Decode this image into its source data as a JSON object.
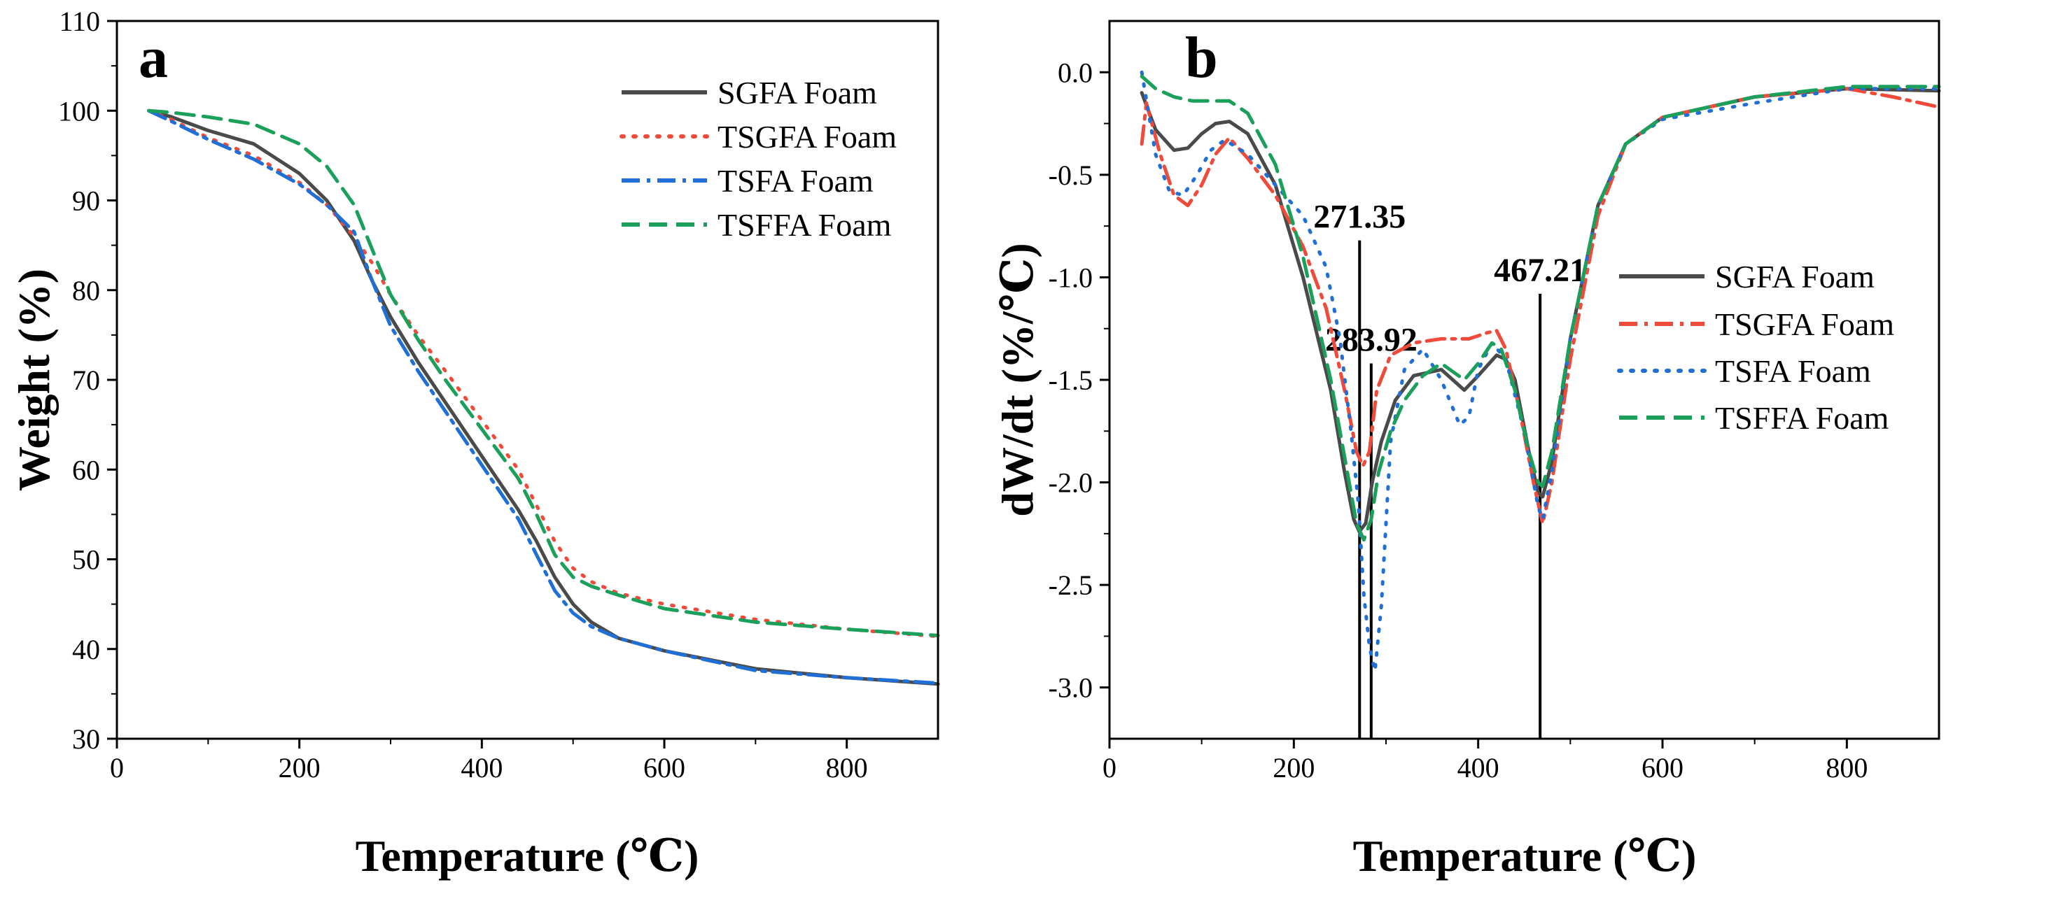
{
  "chart_data": [
    {
      "type": "line",
      "panel_label": "a",
      "title": "",
      "xlabel": "Temperature (℃)",
      "ylabel": "Weight (%)",
      "xlim": [
        0,
        900
      ],
      "ylim": [
        30,
        110
      ],
      "xticks": [
        0,
        200,
        400,
        600,
        800
      ],
      "yticks": [
        30,
        40,
        50,
        60,
        70,
        80,
        90,
        100,
        110
      ],
      "grid": false,
      "legend_position": "top-right",
      "series": [
        {
          "name": "SGFA Foam",
          "color": "#4a4a4a",
          "dash": "solid",
          "x": [
            35,
            60,
            100,
            150,
            200,
            230,
            260,
            280,
            300,
            330,
            360,
            400,
            440,
            460,
            480,
            500,
            520,
            550,
            600,
            700,
            800,
            900
          ],
          "y": [
            100,
            99.3,
            97.8,
            96.3,
            93,
            90,
            85.5,
            81,
            77,
            72,
            67.5,
            61.5,
            55.5,
            52,
            48,
            45,
            43,
            41.2,
            39.8,
            37.8,
            36.8,
            36.1
          ]
        },
        {
          "name": "TSGFA Foam",
          "color": "#f04a3a",
          "dash": "dot",
          "x": [
            35,
            60,
            100,
            150,
            200,
            230,
            260,
            280,
            300,
            330,
            360,
            400,
            440,
            460,
            480,
            500,
            520,
            550,
            600,
            700,
            800,
            900
          ],
          "y": [
            100,
            99,
            97,
            95,
            92,
            89.5,
            86,
            83,
            79.5,
            75,
            71,
            65.5,
            60,
            56,
            52,
            49,
            47.5,
            46.2,
            45,
            43.3,
            42.2,
            41.4
          ]
        },
        {
          "name": "TSFA Foam",
          "color": "#1f6fd6",
          "dash": "dashdot",
          "x": [
            35,
            60,
            100,
            150,
            200,
            230,
            260,
            280,
            300,
            330,
            360,
            400,
            440,
            460,
            480,
            500,
            520,
            550,
            600,
            700,
            800,
            900
          ],
          "y": [
            100,
            98.8,
            96.8,
            94.6,
            91.8,
            89.5,
            86.5,
            81,
            76,
            71,
            66.5,
            60.5,
            54.5,
            50.5,
            46.5,
            44,
            42.5,
            41.2,
            39.8,
            37.6,
            36.8,
            36.2
          ]
        },
        {
          "name": "TSFFA Foam",
          "color": "#1aa05a",
          "dash": "dash",
          "x": [
            35,
            60,
            100,
            150,
            200,
            230,
            260,
            280,
            300,
            330,
            360,
            400,
            440,
            460,
            480,
            500,
            520,
            550,
            600,
            700,
            800,
            900
          ],
          "y": [
            100,
            99.8,
            99.3,
            98.5,
            96.3,
            93.8,
            89.5,
            84.5,
            79.5,
            74.5,
            70,
            64.5,
            59,
            55,
            50.5,
            48,
            47,
            46,
            44.5,
            43,
            42.2,
            41.5
          ]
        }
      ]
    },
    {
      "type": "line",
      "panel_label": "b",
      "title": "",
      "xlabel": "Temperature (℃)",
      "ylabel": "dW/dt (%/℃)",
      "xlim": [
        0,
        900
      ],
      "ylim": [
        -3.25,
        0.25
      ],
      "xticks": [
        0,
        200,
        400,
        600,
        800
      ],
      "yticks": [
        0.0,
        -0.5,
        -1.0,
        -1.5,
        -2.0,
        -2.5,
        -3.0
      ],
      "ytick_labels": [
        "0.0",
        "-0.5",
        "-1.0",
        "-1.5",
        "-2.0",
        "-2.5",
        "-3.0"
      ],
      "grid": false,
      "legend_position": "right",
      "annotations": [
        {
          "x": 271.35,
          "label": "271.35",
          "y_top": -0.82
        },
        {
          "x": 283.92,
          "label": "283.92",
          "y_top": -1.42
        },
        {
          "x": 467.21,
          "label": "467.21",
          "y_top": -1.08
        }
      ],
      "series": [
        {
          "name": "SGFA Foam",
          "color": "#4a4a4a",
          "dash": "solid",
          "x": [
            35,
            50,
            70,
            85,
            100,
            115,
            130,
            150,
            180,
            210,
            240,
            255,
            265,
            271,
            278,
            285,
            295,
            310,
            330,
            360,
            385,
            400,
            420,
            430,
            440,
            455,
            465,
            470,
            480,
            500,
            530,
            560,
            600,
            700,
            800,
            900
          ],
          "y": [
            -0.1,
            -0.28,
            -0.38,
            -0.37,
            -0.3,
            -0.25,
            -0.24,
            -0.3,
            -0.55,
            -1.0,
            -1.55,
            -1.95,
            -2.18,
            -2.24,
            -2.2,
            -2.0,
            -1.8,
            -1.6,
            -1.48,
            -1.45,
            -1.55,
            -1.48,
            -1.38,
            -1.4,
            -1.5,
            -1.85,
            -2.05,
            -2.07,
            -1.9,
            -1.3,
            -0.65,
            -0.35,
            -0.22,
            -0.12,
            -0.08,
            -0.09
          ]
        },
        {
          "name": "TSGFA Foam",
          "color": "#f04a3a",
          "dash": "dashdot",
          "x": [
            35,
            40,
            55,
            70,
            85,
            100,
            115,
            130,
            150,
            180,
            210,
            235,
            255,
            268,
            275,
            282,
            290,
            305,
            330,
            360,
            390,
            410,
            420,
            430,
            445,
            460,
            470,
            480,
            500,
            530,
            560,
            600,
            700,
            800,
            850,
            900
          ],
          "y": [
            -0.35,
            -0.15,
            -0.4,
            -0.6,
            -0.65,
            -0.55,
            -0.4,
            -0.32,
            -0.42,
            -0.6,
            -0.85,
            -1.15,
            -1.55,
            -1.85,
            -1.92,
            -1.85,
            -1.55,
            -1.38,
            -1.32,
            -1.3,
            -1.3,
            -1.27,
            -1.26,
            -1.35,
            -1.65,
            -2.0,
            -2.2,
            -2.0,
            -1.4,
            -0.7,
            -0.35,
            -0.22,
            -0.12,
            -0.08,
            -0.12,
            -0.17
          ]
        },
        {
          "name": "TSFA Foam",
          "color": "#1f6fd6",
          "dash": "dot",
          "x": [
            35,
            50,
            65,
            80,
            95,
            110,
            125,
            150,
            180,
            210,
            235,
            250,
            262,
            270,
            276,
            282,
            288,
            295,
            305,
            320,
            340,
            360,
            380,
            390,
            400,
            415,
            430,
            450,
            465,
            470,
            480,
            500,
            530,
            560,
            600,
            700,
            800,
            900
          ],
          "y": [
            0.0,
            -0.4,
            -0.58,
            -0.6,
            -0.5,
            -0.38,
            -0.33,
            -0.4,
            -0.55,
            -0.7,
            -0.95,
            -1.3,
            -1.75,
            -2.1,
            -2.55,
            -2.8,
            -2.92,
            -2.6,
            -1.8,
            -1.45,
            -1.35,
            -1.5,
            -1.72,
            -1.68,
            -1.45,
            -1.32,
            -1.4,
            -1.75,
            -2.12,
            -2.18,
            -1.95,
            -1.3,
            -0.65,
            -0.35,
            -0.23,
            -0.15,
            -0.08,
            -0.08
          ]
        },
        {
          "name": "TSFFA Foam",
          "color": "#1aa05a",
          "dash": "dash",
          "x": [
            35,
            50,
            70,
            90,
            110,
            130,
            150,
            180,
            210,
            240,
            258,
            268,
            276,
            284,
            292,
            305,
            320,
            340,
            360,
            385,
            400,
            415,
            425,
            440,
            455,
            465,
            470,
            480,
            500,
            530,
            560,
            600,
            700,
            800,
            900
          ],
          "y": [
            -0.02,
            -0.08,
            -0.12,
            -0.14,
            -0.14,
            -0.14,
            -0.2,
            -0.45,
            -0.9,
            -1.5,
            -1.95,
            -2.2,
            -2.28,
            -2.18,
            -1.95,
            -1.75,
            -1.6,
            -1.48,
            -1.42,
            -1.5,
            -1.42,
            -1.32,
            -1.35,
            -1.55,
            -1.85,
            -2.0,
            -2.02,
            -1.85,
            -1.3,
            -0.65,
            -0.35,
            -0.22,
            -0.12,
            -0.07,
            -0.07
          ]
        }
      ]
    }
  ]
}
